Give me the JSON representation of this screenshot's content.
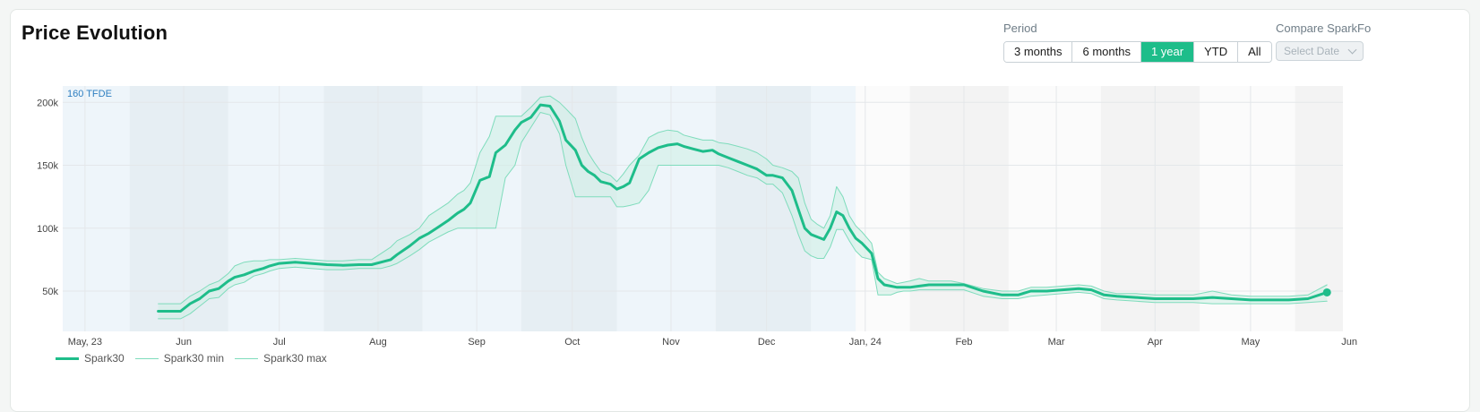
{
  "header": {
    "title": "Price Evolution",
    "period_label": "Period",
    "compare_label": "Compare SparkFo",
    "select_placeholder": "Select Date"
  },
  "period_buttons": [
    {
      "label": "3 months",
      "active": false
    },
    {
      "label": "6 months",
      "active": false
    },
    {
      "label": "1 year",
      "active": true
    },
    {
      "label": "YTD",
      "active": false
    },
    {
      "label": "All",
      "active": false
    }
  ],
  "colors": {
    "accent": "#1ebd8a",
    "band": "#cdeee3",
    "band_line": "#7fdcbc",
    "shade_light": "#eef5fa",
    "shade_dark": "#e6eef3",
    "shade_grey": "#f3f3f3"
  },
  "chart_data": {
    "type": "area",
    "annotation": "160 TFDE",
    "ylim": [
      18000,
      213000
    ],
    "yticks": [
      {
        "value": 50000,
        "label": "50k"
      },
      {
        "value": 100000,
        "label": "100k"
      },
      {
        "value": 150000,
        "label": "150k"
      },
      {
        "value": 200000,
        "label": "200k"
      }
    ],
    "xlim": [
      -1,
      401
    ],
    "xticks": [
      {
        "day": 6,
        "label": "May, 23"
      },
      {
        "day": 37,
        "label": "Jun"
      },
      {
        "day": 67,
        "label": "Jul"
      },
      {
        "day": 98,
        "label": "Aug"
      },
      {
        "day": 129,
        "label": "Sep"
      },
      {
        "day": 159,
        "label": "Oct"
      },
      {
        "day": 190,
        "label": "Nov"
      },
      {
        "day": 220,
        "label": "Dec"
      },
      {
        "day": 251,
        "label": "Jan, 24"
      },
      {
        "day": 282,
        "label": "Feb"
      },
      {
        "day": 311,
        "label": "Mar"
      },
      {
        "day": 342,
        "label": "Apr"
      },
      {
        "day": 372,
        "label": "May"
      },
      {
        "day": 403,
        "label": "Jun"
      }
    ],
    "shaded_periods": [
      {
        "from": -1,
        "to": 20,
        "tone": "light"
      },
      {
        "from": 20,
        "to": 51,
        "tone": "dark"
      },
      {
        "from": 51,
        "to": 81,
        "tone": "light"
      },
      {
        "from": 81,
        "to": 112,
        "tone": "dark"
      },
      {
        "from": 112,
        "to": 143,
        "tone": "light"
      },
      {
        "from": 143,
        "to": 173,
        "tone": "dark"
      },
      {
        "from": 173,
        "to": 204,
        "tone": "light"
      },
      {
        "from": 204,
        "to": 234,
        "tone": "dark"
      },
      {
        "from": 234,
        "to": 248,
        "tone": "light"
      },
      {
        "from": 265,
        "to": 296,
        "tone": "grey"
      },
      {
        "from": 325,
        "to": 356,
        "tone": "grey"
      },
      {
        "from": 386,
        "to": 401,
        "tone": "grey"
      }
    ],
    "series": [
      {
        "name": "Spark30",
        "x": [
          29,
          36,
          39,
          42,
          45,
          48,
          51,
          53,
          56,
          59,
          62,
          64,
          67,
          72,
          77,
          82,
          87,
          92,
          96,
          99,
          102,
          104,
          108,
          111,
          114,
          117,
          120,
          123,
          125,
          127,
          130,
          133,
          135,
          138,
          141,
          143,
          146,
          149,
          152,
          155,
          157,
          160,
          162,
          164,
          166,
          168,
          171,
          173,
          175,
          177,
          180,
          183,
          186,
          189,
          192,
          194,
          197,
          200,
          203,
          205,
          208,
          211,
          214,
          217,
          220,
          222,
          225,
          228,
          230,
          232,
          234,
          236,
          238,
          240,
          242,
          244,
          246,
          248,
          250,
          253,
          255,
          257,
          259,
          261,
          263,
          265,
          268,
          271,
          274,
          278,
          282,
          288,
          294,
          299,
          303,
          308,
          313,
          318,
          322,
          326,
          330,
          336,
          342,
          348,
          354,
          360,
          366,
          372,
          378,
          384,
          390,
          396
        ],
        "y": [
          34000,
          34000,
          40000,
          44000,
          50000,
          52000,
          58000,
          61000,
          63000,
          66000,
          68000,
          70000,
          72000,
          73000,
          72000,
          71000,
          70500,
          71000,
          71000,
          73000,
          75000,
          79000,
          86000,
          92000,
          96000,
          101000,
          106000,
          112000,
          115000,
          120000,
          138000,
          141000,
          160000,
          166000,
          178000,
          184000,
          188000,
          198000,
          197000,
          185000,
          170000,
          162000,
          150000,
          145000,
          142000,
          137000,
          135000,
          131000,
          133000,
          136000,
          155000,
          160000,
          164000,
          166000,
          167000,
          165000,
          163000,
          161000,
          162000,
          159000,
          156000,
          153000,
          150000,
          147000,
          142000,
          142000,
          140000,
          130000,
          115000,
          100000,
          95000,
          93000,
          91000,
          100000,
          113000,
          110000,
          100000,
          92000,
          88000,
          80000,
          60000,
          55000,
          54000,
          53000,
          53000,
          53000,
          54000,
          55000,
          55000,
          55000,
          55000,
          50000,
          47000,
          47000,
          50000,
          50000,
          51000,
          52000,
          51000,
          47000,
          46000,
          45000,
          44000,
          44000,
          44000,
          45000,
          44000,
          43000,
          43000,
          43000,
          44000,
          49000
        ]
      },
      {
        "name": "Spark30 min",
        "x": [
          29,
          36,
          39,
          42,
          45,
          48,
          51,
          53,
          56,
          59,
          62,
          64,
          67,
          72,
          77,
          82,
          87,
          92,
          96,
          99,
          102,
          104,
          108,
          111,
          114,
          117,
          120,
          123,
          125,
          127,
          130,
          133,
          135,
          138,
          141,
          143,
          146,
          149,
          152,
          155,
          157,
          160,
          162,
          164,
          166,
          168,
          171,
          173,
          175,
          177,
          180,
          183,
          186,
          189,
          192,
          194,
          197,
          200,
          203,
          205,
          208,
          211,
          214,
          217,
          220,
          222,
          225,
          228,
          230,
          232,
          234,
          236,
          238,
          240,
          242,
          244,
          246,
          248,
          250,
          253,
          255,
          257,
          259,
          261,
          263,
          265,
          268,
          271,
          274,
          278,
          282,
          288,
          294,
          299,
          303,
          308,
          313,
          318,
          322,
          326,
          330,
          336,
          342,
          348,
          354,
          360,
          366,
          372,
          378,
          384,
          390,
          396
        ],
        "y": [
          28000,
          28000,
          32000,
          38000,
          44000,
          45000,
          52000,
          55000,
          57000,
          62000,
          64000,
          66000,
          68000,
          69000,
          68000,
          67000,
          67000,
          68000,
          68000,
          68000,
          70000,
          72000,
          78000,
          83000,
          89000,
          93000,
          97000,
          100000,
          100000,
          100000,
          100000,
          100000,
          100000,
          140000,
          150000,
          168000,
          180000,
          192000,
          190000,
          175000,
          150000,
          125000,
          125000,
          125000,
          125000,
          125000,
          125000,
          117000,
          117000,
          118000,
          120000,
          130000,
          150000,
          150000,
          150000,
          150000,
          150000,
          150000,
          150000,
          150000,
          148000,
          145000,
          142000,
          140000,
          135000,
          135000,
          128000,
          110000,
          95000,
          82000,
          78000,
          76000,
          76000,
          85000,
          99000,
          99000,
          90000,
          82000,
          77000,
          75000,
          47000,
          47000,
          47000,
          49000,
          50000,
          50000,
          51000,
          51000,
          51000,
          51000,
          51000,
          46000,
          44000,
          44000,
          46000,
          47000,
          48000,
          49000,
          48000,
          44000,
          43000,
          42000,
          41000,
          41000,
          41000,
          40000,
          40000,
          40000,
          40000,
          40000,
          41000,
          42000
        ]
      },
      {
        "name": "Spark30 max",
        "x": [
          29,
          36,
          39,
          42,
          45,
          48,
          51,
          53,
          56,
          59,
          62,
          64,
          67,
          72,
          77,
          82,
          87,
          92,
          96,
          99,
          102,
          104,
          108,
          111,
          114,
          117,
          120,
          123,
          125,
          127,
          130,
          133,
          135,
          138,
          141,
          143,
          146,
          149,
          152,
          155,
          157,
          160,
          162,
          164,
          166,
          168,
          171,
          173,
          175,
          177,
          180,
          183,
          186,
          189,
          192,
          194,
          197,
          200,
          203,
          205,
          208,
          211,
          214,
          217,
          220,
          222,
          225,
          228,
          230,
          232,
          234,
          236,
          238,
          240,
          242,
          244,
          246,
          248,
          250,
          253,
          255,
          257,
          259,
          261,
          263,
          265,
          268,
          271,
          274,
          278,
          282,
          288,
          294,
          299,
          303,
          308,
          313,
          318,
          322,
          326,
          330,
          336,
          342,
          348,
          354,
          360,
          366,
          372,
          378,
          384,
          390,
          396
        ],
        "y": [
          40000,
          40000,
          46000,
          50000,
          55000,
          58000,
          64000,
          70000,
          73000,
          74000,
          74000,
          75000,
          75000,
          76000,
          75000,
          74000,
          74000,
          75000,
          75000,
          80000,
          85000,
          90000,
          95000,
          100000,
          110000,
          115000,
          120000,
          127000,
          130000,
          136000,
          160000,
          173000,
          189000,
          189000,
          189000,
          189000,
          196000,
          204000,
          205000,
          200000,
          195000,
          187000,
          172000,
          160000,
          152000,
          145000,
          142000,
          137000,
          143000,
          150000,
          158000,
          172000,
          176000,
          178000,
          177000,
          174000,
          172000,
          170000,
          170000,
          168000,
          167000,
          165000,
          163000,
          160000,
          155000,
          150000,
          148000,
          145000,
          140000,
          120000,
          107000,
          103000,
          100000,
          110000,
          133000,
          125000,
          110000,
          102000,
          97000,
          88000,
          65000,
          60000,
          58000,
          56000,
          57000,
          58000,
          60000,
          58000,
          58000,
          58000,
          56000,
          52000,
          50000,
          50000,
          53000,
          53000,
          54000,
          55000,
          54000,
          50000,
          48000,
          48000,
          47000,
          47000,
          47000,
          50000,
          47000,
          46000,
          46000,
          46000,
          47000,
          55000
        ]
      }
    ],
    "end_marker": {
      "x": 396,
      "y": 49000
    }
  }
}
